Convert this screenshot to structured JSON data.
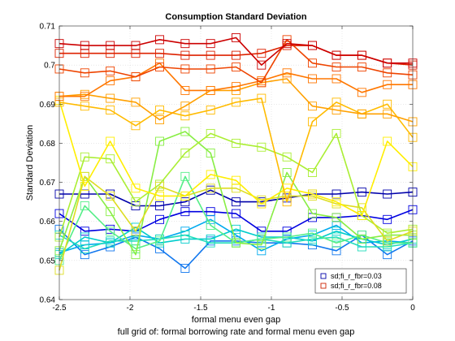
{
  "chart_data": {
    "type": "line",
    "title": "Consumption Standard Deviation",
    "xlabel": "formal menu even gap",
    "ylabel": "Standard Deviation",
    "caption": "full grid of: formal borrowing rate and formal menu even gap",
    "xlim": [
      -2.5,
      0
    ],
    "ylim": [
      0.64,
      0.71
    ],
    "xticks": [
      -2.5,
      -2,
      -1.5,
      -1,
      -0.5,
      0
    ],
    "xtick_labels": [
      "-2.5",
      "-2",
      "-1.5",
      "-1",
      "-0.5",
      "0"
    ],
    "yticks": [
      0.64,
      0.65,
      0.66,
      0.67,
      0.68,
      0.69,
      0.7,
      0.71
    ],
    "ytick_labels": [
      "0.64",
      "0.65",
      "0.66",
      "0.67",
      "0.68",
      "0.69",
      "0.7",
      "0.71"
    ],
    "grid": true,
    "marker": "square",
    "legend": {
      "location": "bottom-right",
      "entries": [
        {
          "label": "sd;fi_r_fbr=0.03",
          "color": "#0000aa"
        },
        {
          "label": "sd;fi_r_fbr=0.08",
          "color": "#cc2200"
        }
      ]
    },
    "x": [
      -2.5,
      -2.32,
      -2.14,
      -1.96,
      -1.79,
      -1.61,
      -1.43,
      -1.25,
      -1.07,
      -0.89,
      -0.71,
      -0.54,
      -0.36,
      -0.18,
      -0.0
    ],
    "series": [
      {
        "color": "#0000aa",
        "values": [
          0.667,
          0.667,
          0.667,
          0.664,
          0.664,
          0.665,
          0.668,
          0.665,
          0.665,
          0.666,
          0.667,
          0.667,
          0.6675,
          0.667,
          0.6675
        ]
      },
      {
        "color": "#0000e0",
        "values": [
          0.662,
          0.6575,
          0.658,
          0.6575,
          0.6605,
          0.6625,
          0.6625,
          0.662,
          0.6575,
          0.6575,
          0.661,
          0.661,
          0.6615,
          0.6605,
          0.663
        ]
      },
      {
        "color": "#1177ee",
        "values": [
          0.658,
          0.6515,
          0.6535,
          0.656,
          0.653,
          0.648,
          0.655,
          0.655,
          0.6545,
          0.6545,
          0.654,
          0.6525,
          0.6565,
          0.6515,
          0.655
        ]
      },
      {
        "color": "#00aaee",
        "values": [
          0.652,
          0.654,
          0.6545,
          0.6565,
          0.6555,
          0.6575,
          0.6605,
          0.6565,
          0.6525,
          0.6555,
          0.6565,
          0.659,
          0.6545,
          0.655,
          0.6545
        ]
      },
      {
        "color": "#00cccc",
        "values": [
          0.6515,
          0.656,
          0.6545,
          0.6585,
          0.6545,
          0.6555,
          0.6555,
          0.658,
          0.656,
          0.656,
          0.655,
          0.6575,
          0.6555,
          0.654,
          0.6555
        ]
      },
      {
        "color": "#22ddbb",
        "values": [
          0.6565,
          0.653,
          0.655,
          0.655,
          0.6555,
          0.6565,
          0.6545,
          0.6545,
          0.6555,
          0.6545,
          0.6555,
          0.656,
          0.6535,
          0.6535,
          0.6545
        ]
      },
      {
        "color": "#55ee88",
        "values": [
          0.65,
          0.664,
          0.6575,
          0.653,
          0.655,
          0.6715,
          0.659,
          0.6545,
          0.6555,
          0.656,
          0.657,
          0.6545,
          0.6565,
          0.6545,
          0.6545
        ]
      },
      {
        "color": "#88ee44",
        "values": [
          0.6525,
          0.6715,
          0.6625,
          0.6515,
          0.6805,
          0.683,
          0.6775,
          0.6545,
          0.654,
          0.6725,
          0.662,
          0.661,
          0.6555,
          0.6565,
          0.6565
        ]
      },
      {
        "color": "#aaee33",
        "values": [
          0.656,
          0.6765,
          0.676,
          0.665,
          0.6695,
          0.6775,
          0.6825,
          0.68,
          0.679,
          0.6765,
          0.6725,
          0.6825,
          0.6615,
          0.657,
          0.658
        ]
      },
      {
        "color": "#dddd22",
        "values": [
          0.6475,
          0.6715,
          0.6665,
          0.6575,
          0.669,
          0.6665,
          0.6685,
          0.6685,
          0.6655,
          0.6665,
          0.6665,
          0.6645,
          0.6635,
          0.655,
          0.6575
        ]
      },
      {
        "color": "#ffee00",
        "values": [
          0.691,
          0.669,
          0.6805,
          0.6685,
          0.6665,
          0.6665,
          0.672,
          0.6705,
          0.6645,
          0.6685,
          0.667,
          0.665,
          0.6615,
          0.6805,
          0.674
        ]
      },
      {
        "color": "#ffbb00",
        "values": [
          0.6905,
          0.6895,
          0.6885,
          0.6845,
          0.6885,
          0.687,
          0.6885,
          0.6905,
          0.6915,
          0.665,
          0.6855,
          0.6905,
          0.6875,
          0.69,
          0.6815
        ]
      },
      {
        "color": "#ffa000",
        "values": [
          0.692,
          0.6925,
          0.6915,
          0.6905,
          0.686,
          0.6895,
          0.6935,
          0.6935,
          0.6955,
          0.6965,
          0.6895,
          0.6885,
          0.6875,
          0.6875,
          0.6855
        ]
      },
      {
        "color": "#ff7700",
        "values": [
          0.692,
          0.692,
          0.696,
          0.697,
          0.7005,
          0.6935,
          0.6935,
          0.6945,
          0.696,
          0.698,
          0.6965,
          0.6965,
          0.693,
          0.695,
          0.695
        ]
      },
      {
        "color": "#ee4400",
        "values": [
          0.699,
          0.698,
          0.6985,
          0.697,
          0.6995,
          0.699,
          0.699,
          0.6995,
          0.6955,
          0.7065,
          0.7005,
          0.6995,
          0.6995,
          0.698,
          0.6975
        ]
      },
      {
        "color": "#dd2200",
        "values": [
          0.703,
          0.703,
          0.703,
          0.703,
          0.703,
          0.7025,
          0.7025,
          0.7025,
          0.703,
          0.705,
          0.705,
          0.7025,
          0.7025,
          0.7005,
          0.7
        ]
      },
      {
        "color": "#cc0000",
        "values": [
          0.7055,
          0.705,
          0.705,
          0.705,
          0.7065,
          0.7055,
          0.7055,
          0.707,
          0.7,
          0.7055,
          0.705,
          0.7025,
          0.7025,
          0.7005,
          0.7005
        ]
      }
    ]
  }
}
